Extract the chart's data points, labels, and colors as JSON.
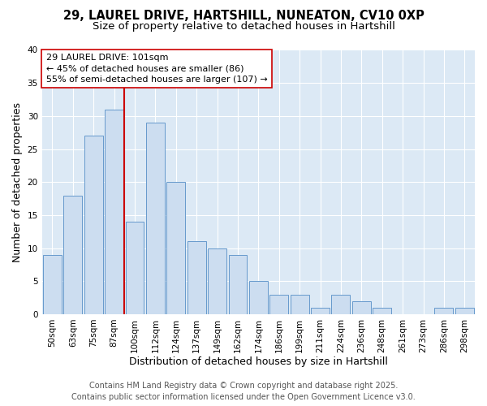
{
  "title_line1": "29, LAUREL DRIVE, HARTSHILL, NUNEATON, CV10 0XP",
  "title_line2": "Size of property relative to detached houses in Hartshill",
  "xlabel": "Distribution of detached houses by size in Hartshill",
  "ylabel": "Number of detached properties",
  "categories": [
    "50sqm",
    "63sqm",
    "75sqm",
    "87sqm",
    "100sqm",
    "112sqm",
    "124sqm",
    "137sqm",
    "149sqm",
    "162sqm",
    "174sqm",
    "186sqm",
    "199sqm",
    "211sqm",
    "224sqm",
    "236sqm",
    "248sqm",
    "261sqm",
    "273sqm",
    "286sqm",
    "298sqm"
  ],
  "values": [
    9,
    18,
    27,
    31,
    14,
    29,
    20,
    11,
    10,
    9,
    5,
    3,
    3,
    1,
    3,
    2,
    1,
    0,
    0,
    1,
    1
  ],
  "bar_color": "#ccddf0",
  "bar_edge_color": "#6699cc",
  "vline_color": "#cc0000",
  "annotation_text": "29 LAUREL DRIVE: 101sqm\n← 45% of detached houses are smaller (86)\n55% of semi-detached houses are larger (107) →",
  "annotation_box_facecolor": "#ffffff",
  "annotation_box_edgecolor": "#cc0000",
  "ylim": [
    0,
    40
  ],
  "yticks": [
    0,
    5,
    10,
    15,
    20,
    25,
    30,
    35,
    40
  ],
  "fig_facecolor": "#ffffff",
  "plot_facecolor": "#dce9f5",
  "grid_color": "#ffffff",
  "footer_text": "Contains HM Land Registry data © Crown copyright and database right 2025.\nContains public sector information licensed under the Open Government Licence v3.0.",
  "title_fontsize": 10.5,
  "subtitle_fontsize": 9.5,
  "axis_label_fontsize": 9,
  "tick_fontsize": 7.5,
  "annotation_fontsize": 8,
  "footer_fontsize": 7
}
